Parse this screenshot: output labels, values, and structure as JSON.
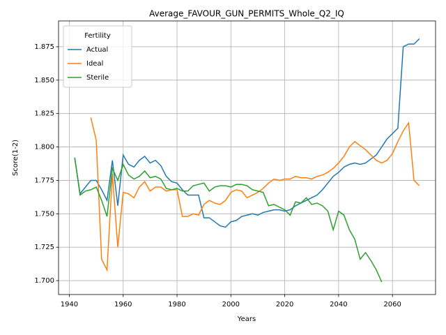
{
  "chart_data": {
    "type": "line",
    "title": "Average_FAVOUR_GUN_PERMITS_Whole_Q2_IQ",
    "x_label": "Years",
    "y_label": "Score(1-2)",
    "legend_title": "Fertility",
    "legend": "upper left",
    "grid": true,
    "xlim": [
      1936,
      2076
    ],
    "ylim": [
      1.6896,
      1.8943
    ],
    "xticks": [
      1940,
      1960,
      1980,
      2000,
      2020,
      2040,
      2060
    ],
    "yticks": [
      {
        "value": 1.7,
        "label": "1.700"
      },
      {
        "value": 1.725,
        "label": "1.725"
      },
      {
        "value": 1.75,
        "label": "1.750"
      },
      {
        "value": 1.775,
        "label": "1.775"
      },
      {
        "value": 1.8,
        "label": "1.800"
      },
      {
        "value": 1.825,
        "label": "1.825"
      },
      {
        "value": 1.85,
        "label": "1.850"
      },
      {
        "value": 1.875,
        "label": "1.875"
      }
    ],
    "x": [
      1942,
      1944,
      1946,
      1948,
      1950,
      1952,
      1954,
      1956,
      1958,
      1960,
      1962,
      1964,
      1966,
      1968,
      1970,
      1972,
      1974,
      1976,
      1978,
      1980,
      1982,
      1984,
      1986,
      1988,
      1990,
      1992,
      1994,
      1996,
      1998,
      2000,
      2002,
      2004,
      2006,
      2008,
      2010,
      2012,
      2014,
      2016,
      2018,
      2020,
      2022,
      2024,
      2026,
      2028,
      2030,
      2032,
      2034,
      2036,
      2038,
      2040,
      2042,
      2044,
      2046,
      2048,
      2050,
      2052,
      2054,
      2056,
      2058,
      2060,
      2062,
      2064,
      2066,
      2068,
      2070
    ],
    "series": [
      {
        "name": "Actual",
        "color": "#1f77b4",
        "values": [
          1.792,
          1.765,
          1.77,
          1.775,
          1.775,
          1.768,
          1.76,
          1.79,
          1.756,
          1.794,
          1.787,
          1.785,
          1.79,
          1.793,
          1.788,
          1.79,
          1.786,
          1.778,
          1.774,
          1.773,
          1.768,
          1.764,
          1.764,
          1.764,
          1.747,
          1.747,
          1.744,
          1.741,
          1.74,
          1.744,
          1.745,
          1.748,
          1.749,
          1.75,
          1.749,
          1.751,
          1.752,
          1.753,
          1.753,
          1.752,
          1.753,
          1.756,
          1.758,
          1.76,
          1.762,
          1.764,
          1.768,
          1.773,
          1.778,
          1.781,
          1.785,
          1.787,
          1.788,
          1.787,
          1.788,
          1.791,
          1.794,
          1.8,
          1.806,
          1.81,
          1.814,
          1.875,
          1.877,
          1.877,
          1.881
        ]
      },
      {
        "name": "Ideal",
        "color": "#ff7f0e",
        "values": [
          null,
          null,
          null,
          1.822,
          1.805,
          1.716,
          1.708,
          1.78,
          1.725,
          1.766,
          1.765,
          1.762,
          1.77,
          1.774,
          1.767,
          1.77,
          1.77,
          1.767,
          1.768,
          1.768,
          1.748,
          1.748,
          1.75,
          1.749,
          1.757,
          1.76,
          1.758,
          1.757,
          1.76,
          1.766,
          1.768,
          1.767,
          1.762,
          1.764,
          1.766,
          1.769,
          1.773,
          1.776,
          1.775,
          1.776,
          1.776,
          1.778,
          1.777,
          1.777,
          1.776,
          1.778,
          1.779,
          1.781,
          1.784,
          1.788,
          1.793,
          1.8,
          1.804,
          1.801,
          1.798,
          1.794,
          1.79,
          1.788,
          1.79,
          1.795,
          1.804,
          1.812,
          1.818,
          1.775,
          1.771
        ]
      },
      {
        "name": "Sterile",
        "color": "#2ca02c",
        "values": [
          1.792,
          1.764,
          1.767,
          1.768,
          1.77,
          1.76,
          1.748,
          1.784,
          1.775,
          1.787,
          1.779,
          1.776,
          1.778,
          1.782,
          1.777,
          1.778,
          1.776,
          1.769,
          1.768,
          1.769,
          1.767,
          1.767,
          1.771,
          1.772,
          1.773,
          1.767,
          1.77,
          1.771,
          1.771,
          1.77,
          1.772,
          1.772,
          1.771,
          1.768,
          1.767,
          1.766,
          1.756,
          1.757,
          1.755,
          1.753,
          1.749,
          1.759,
          1.758,
          1.762,
          1.757,
          1.758,
          1.756,
          1.752,
          1.738,
          1.752,
          1.749,
          1.738,
          1.731,
          1.716,
          1.721,
          1.715,
          1.708,
          1.699,
          null,
          null,
          null,
          null,
          null,
          null,
          null
        ]
      }
    ]
  }
}
